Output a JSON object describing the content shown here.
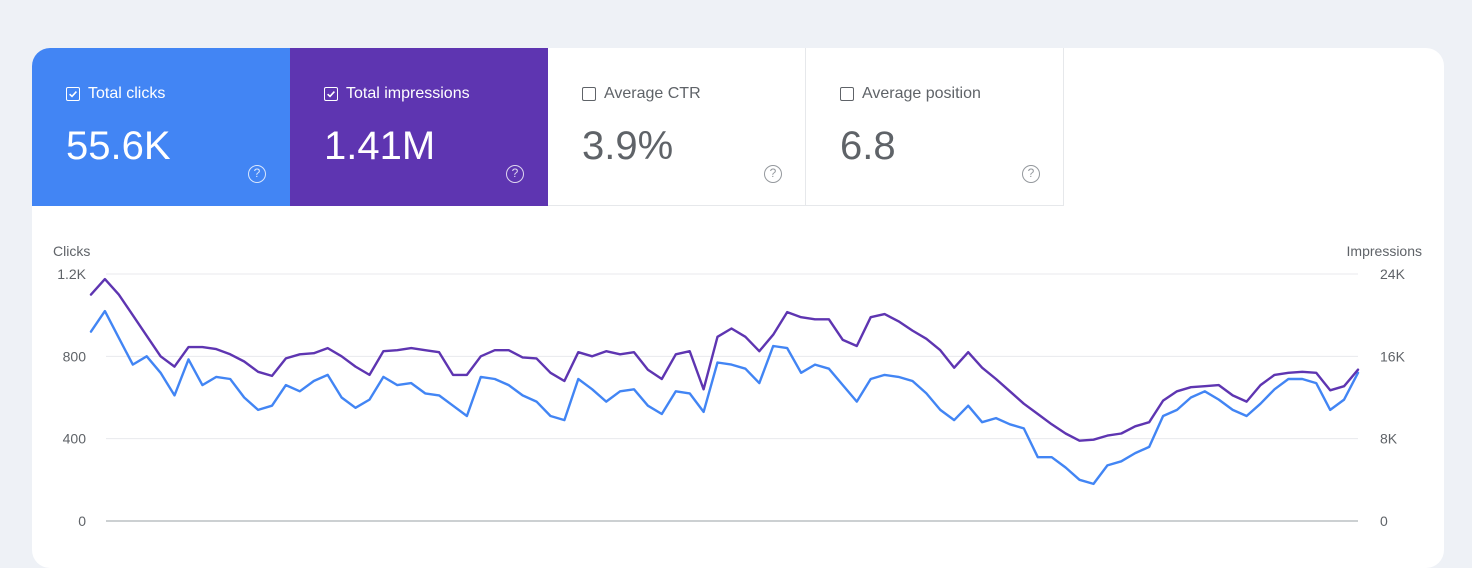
{
  "metrics": [
    {
      "label": "Total clicks",
      "value": "55.6K",
      "checked": true,
      "color": "#4285f4"
    },
    {
      "label": "Total impressions",
      "value": "1.41M",
      "checked": true,
      "color": "#5e35b1"
    },
    {
      "label": "Average CTR",
      "value": "3.9%",
      "checked": false,
      "color": "#ffffff"
    },
    {
      "label": "Average position",
      "value": "6.8",
      "checked": false,
      "color": "#ffffff"
    }
  ],
  "help_glyph": "?",
  "chart_data": {
    "type": "line",
    "xlabel": "",
    "y_left": {
      "label": "Clicks",
      "ticks": [
        "0",
        "400",
        "800",
        "1.2K"
      ],
      "lim": [
        0,
        1200
      ]
    },
    "y_right": {
      "label": "Impressions",
      "ticks": [
        "0",
        "8K",
        "16K",
        "24K"
      ],
      "lim": [
        0,
        24000
      ]
    },
    "grid": true,
    "series": [
      {
        "axis": "left",
        "color": "#4285f4",
        "values": [
          920,
          1020,
          890,
          760,
          800,
          720,
          610,
          785,
          660,
          700,
          690,
          600,
          540,
          560,
          660,
          630,
          680,
          710,
          600,
          550,
          590,
          700,
          660,
          670,
          620,
          610,
          560,
          510,
          700,
          690,
          660,
          610,
          580,
          510,
          490,
          690,
          640,
          580,
          630,
          640,
          560,
          520,
          630,
          620,
          530,
          770,
          760,
          740,
          670,
          850,
          840,
          720,
          760,
          740,
          660,
          580,
          690,
          710,
          700,
          680,
          620,
          540,
          490,
          560,
          480,
          500,
          470,
          450,
          310,
          310,
          260,
          200,
          180,
          270,
          290,
          330,
          360,
          510,
          540,
          600,
          630,
          590,
          540,
          510,
          570,
          640,
          690,
          690,
          670,
          540,
          590,
          720
        ]
      },
      {
        "axis": "right",
        "color": "#5e35b1",
        "values": [
          22000,
          23500,
          22000,
          20000,
          18000,
          16000,
          15000,
          16900,
          16900,
          16700,
          16200,
          15500,
          14500,
          14100,
          15800,
          16200,
          16300,
          16800,
          16000,
          15000,
          14200,
          16500,
          16600,
          16800,
          16600,
          16400,
          14200,
          14200,
          16000,
          16600,
          16600,
          15900,
          15800,
          14400,
          13600,
          16400,
          16000,
          16500,
          16200,
          16400,
          14700,
          13800,
          16200,
          16500,
          12800,
          17900,
          18700,
          17900,
          16500,
          18100,
          20300,
          19800,
          19600,
          19600,
          17600,
          17000,
          19800,
          20100,
          19400,
          18500,
          17700,
          16600,
          14900,
          16400,
          14900,
          13800,
          12600,
          11400,
          10400,
          9400,
          8500,
          7800,
          7900,
          8300,
          8500,
          9200,
          9600,
          11700,
          12600,
          13000,
          13100,
          13200,
          12200,
          11600,
          13200,
          14200,
          14400,
          14500,
          14400,
          12700,
          13100,
          14700
        ]
      }
    ]
  }
}
